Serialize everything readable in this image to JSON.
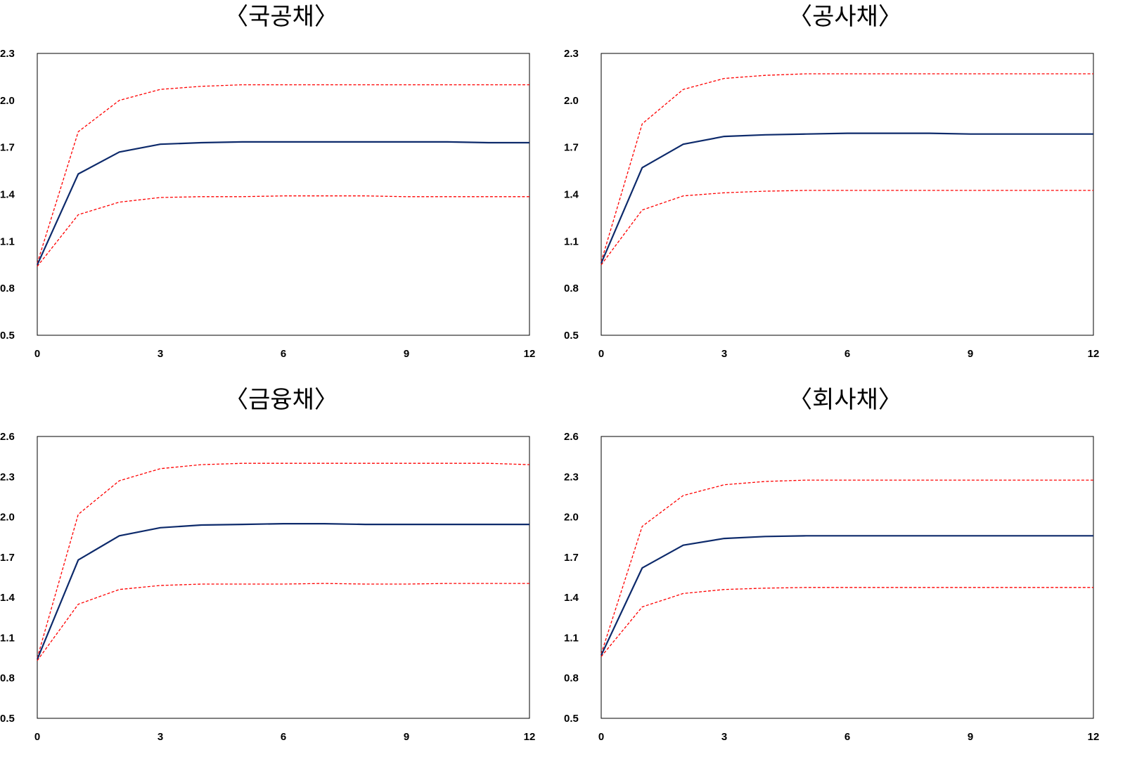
{
  "chart_data": [
    {
      "type": "line",
      "title": "〈국공채〉",
      "xlabel": "",
      "ylabel": "",
      "x": [
        0,
        1,
        2,
        3,
        4,
        5,
        6,
        7,
        8,
        9,
        10,
        11,
        12
      ],
      "xticks": [
        "0",
        "3",
        "6",
        "9",
        "12"
      ],
      "yticks": [
        "2.3",
        "2.0",
        "1.7",
        "1.4",
        "1.1",
        "0.8",
        "0.5"
      ],
      "xlim": [
        0,
        12
      ],
      "ylim": [
        0.5,
        2.3
      ],
      "grid": false,
      "legend": "none",
      "series": [
        {
          "role": "upper",
          "style": "dashed",
          "color": "#ff0000",
          "values": [
            0.96,
            1.8,
            2.0,
            2.07,
            2.09,
            2.1,
            2.1,
            2.1,
            2.1,
            2.1,
            2.1,
            2.1,
            2.1
          ]
        },
        {
          "role": "estimate",
          "style": "solid",
          "color": "#0d2a6b",
          "values": [
            0.95,
            1.53,
            1.67,
            1.72,
            1.73,
            1.735,
            1.735,
            1.735,
            1.735,
            1.735,
            1.735,
            1.73,
            1.73
          ]
        },
        {
          "role": "lower",
          "style": "dashed",
          "color": "#ff0000",
          "values": [
            0.94,
            1.27,
            1.35,
            1.38,
            1.385,
            1.385,
            1.39,
            1.39,
            1.39,
            1.385,
            1.385,
            1.385,
            1.385
          ]
        }
      ]
    },
    {
      "type": "line",
      "title": "〈공사채〉",
      "xlabel": "",
      "ylabel": "",
      "x": [
        0,
        1,
        2,
        3,
        4,
        5,
        6,
        7,
        8,
        9,
        10,
        11,
        12
      ],
      "xticks": [
        "0",
        "3",
        "6",
        "9",
        "12"
      ],
      "yticks": [
        "2.3",
        "2.0",
        "1.7",
        "1.4",
        "1.1",
        "0.8",
        "0.5"
      ],
      "xlim": [
        0,
        12
      ],
      "ylim": [
        0.5,
        2.3
      ],
      "grid": false,
      "legend": "none",
      "series": [
        {
          "role": "upper",
          "style": "dashed",
          "color": "#ff0000",
          "values": [
            0.97,
            1.85,
            2.07,
            2.14,
            2.16,
            2.17,
            2.17,
            2.17,
            2.17,
            2.17,
            2.17,
            2.17,
            2.17
          ]
        },
        {
          "role": "estimate",
          "style": "solid",
          "color": "#0d2a6b",
          "values": [
            0.96,
            1.57,
            1.72,
            1.77,
            1.78,
            1.785,
            1.79,
            1.79,
            1.79,
            1.785,
            1.785,
            1.785,
            1.785
          ]
        },
        {
          "role": "lower",
          "style": "dashed",
          "color": "#ff0000",
          "values": [
            0.95,
            1.3,
            1.39,
            1.41,
            1.42,
            1.425,
            1.425,
            1.425,
            1.425,
            1.425,
            1.425,
            1.425,
            1.425
          ]
        }
      ]
    },
    {
      "type": "line",
      "title": "〈금융채〉",
      "xlabel": "",
      "ylabel": "",
      "x": [
        0,
        1,
        2,
        3,
        4,
        5,
        6,
        7,
        8,
        9,
        10,
        11,
        12
      ],
      "xticks": [
        "0",
        "3",
        "6",
        "9",
        "12"
      ],
      "yticks": [
        "2.6",
        "2.3",
        "2.0",
        "1.7",
        "1.4",
        "1.1",
        "0.8",
        "0.5"
      ],
      "xlim": [
        0,
        12
      ],
      "ylim": [
        0.5,
        2.6
      ],
      "grid": false,
      "legend": "none",
      "series": [
        {
          "role": "upper",
          "style": "dashed",
          "color": "#ff0000",
          "values": [
            0.95,
            2.02,
            2.27,
            2.36,
            2.39,
            2.4,
            2.4,
            2.4,
            2.4,
            2.4,
            2.4,
            2.4,
            2.39
          ]
        },
        {
          "role": "estimate",
          "style": "solid",
          "color": "#0d2a6b",
          "values": [
            0.94,
            1.68,
            1.86,
            1.92,
            1.94,
            1.945,
            1.95,
            1.95,
            1.945,
            1.945,
            1.945,
            1.945,
            1.945
          ]
        },
        {
          "role": "lower",
          "style": "dashed",
          "color": "#ff0000",
          "values": [
            0.93,
            1.35,
            1.46,
            1.49,
            1.5,
            1.5,
            1.5,
            1.505,
            1.5,
            1.5,
            1.505,
            1.505,
            1.505
          ]
        }
      ]
    },
    {
      "type": "line",
      "title": "〈회사채〉",
      "xlabel": "",
      "ylabel": "",
      "x": [
        0,
        1,
        2,
        3,
        4,
        5,
        6,
        7,
        8,
        9,
        10,
        11,
        12
      ],
      "xticks": [
        "0",
        "3",
        "6",
        "9",
        "12"
      ],
      "yticks": [
        "2.6",
        "2.3",
        "2.0",
        "1.7",
        "1.4",
        "1.1",
        "0.8",
        "0.5"
      ],
      "xlim": [
        0,
        12
      ],
      "ylim": [
        0.5,
        2.6
      ],
      "grid": false,
      "legend": "none",
      "series": [
        {
          "role": "upper",
          "style": "dashed",
          "color": "#ff0000",
          "values": [
            0.98,
            1.93,
            2.16,
            2.24,
            2.265,
            2.275,
            2.275,
            2.275,
            2.275,
            2.275,
            2.275,
            2.275,
            2.275
          ]
        },
        {
          "role": "estimate",
          "style": "solid",
          "color": "#0d2a6b",
          "values": [
            0.97,
            1.62,
            1.79,
            1.84,
            1.855,
            1.86,
            1.86,
            1.86,
            1.86,
            1.86,
            1.86,
            1.86,
            1.86
          ]
        },
        {
          "role": "lower",
          "style": "dashed",
          "color": "#ff0000",
          "values": [
            0.96,
            1.33,
            1.43,
            1.46,
            1.47,
            1.475,
            1.475,
            1.475,
            1.475,
            1.475,
            1.475,
            1.475,
            1.475
          ]
        }
      ]
    }
  ]
}
